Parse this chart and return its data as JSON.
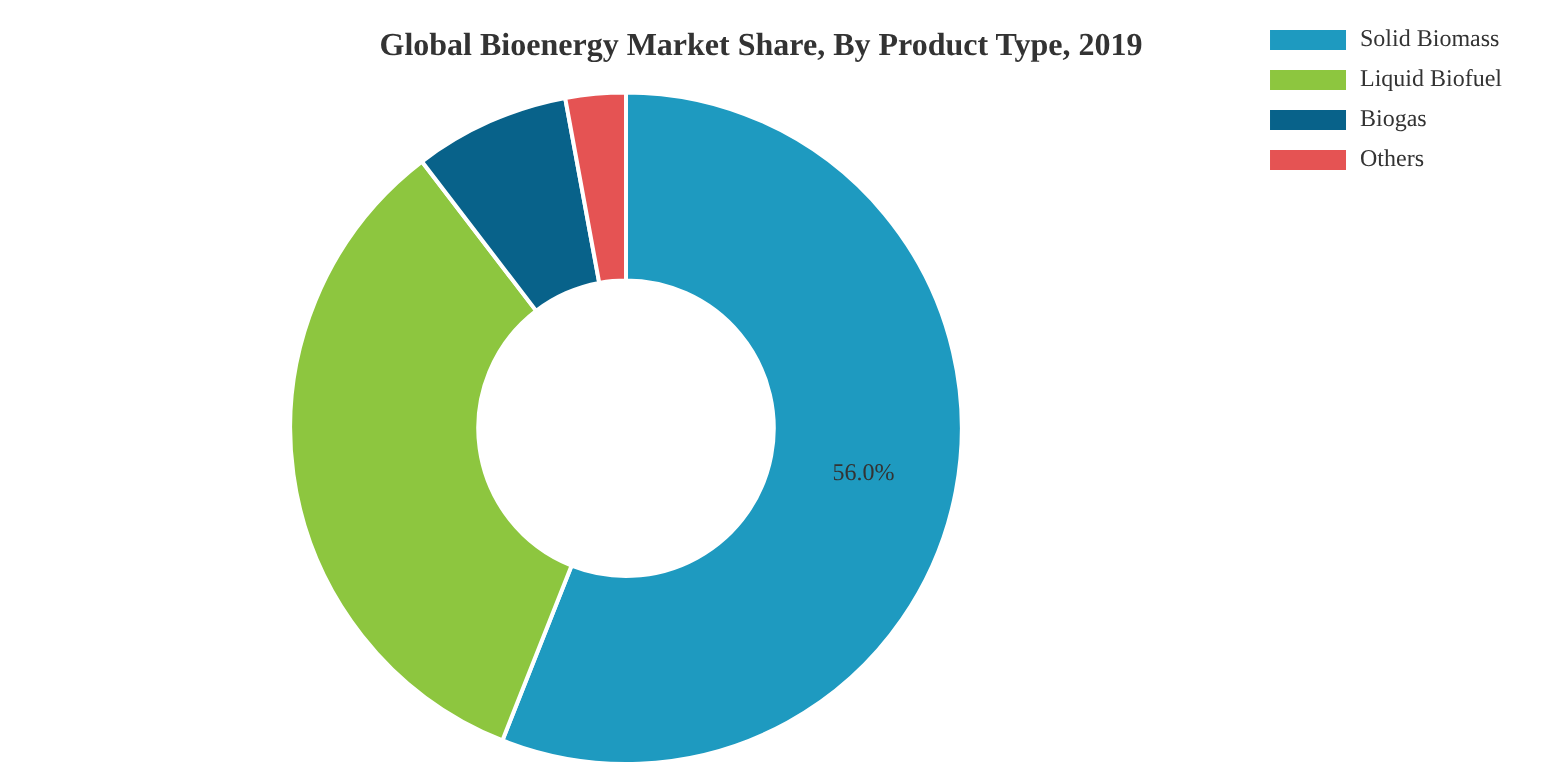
{
  "chart_data": {
    "type": "donut",
    "title": "Global Bioenergy Market Share, By Product Type, 2019",
    "categories": [
      "Solid Biomass",
      "Liquid Biofuel",
      "Biogas",
      "Others"
    ],
    "values": [
      56.0,
      33.6,
      7.5,
      2.9
    ],
    "colors": [
      "#1e9ac0",
      "#8dc63f",
      "#08628a",
      "#e55353"
    ],
    "value_labels": [
      "56.0%",
      null,
      null,
      null
    ],
    "legend": "top right"
  }
}
